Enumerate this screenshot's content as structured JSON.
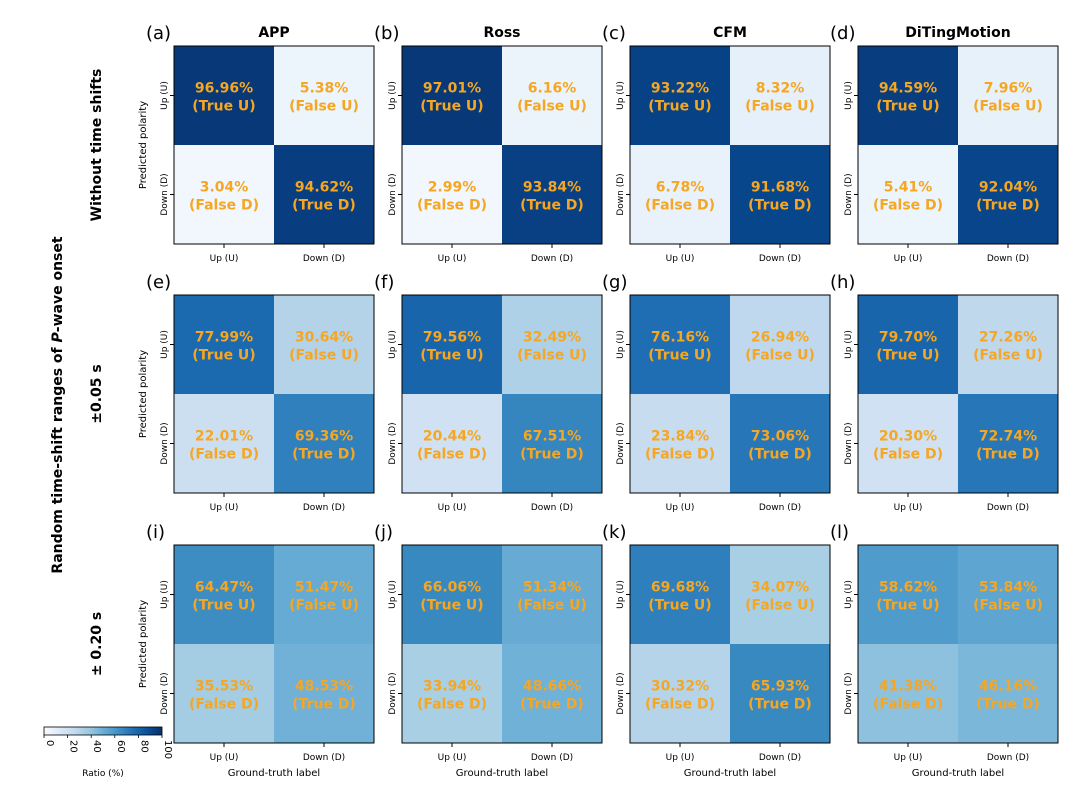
{
  "figure": {
    "y_super_label_prefix": "Random time-shift ranges of ",
    "y_super_label_italic": "P",
    "y_super_label_suffix": "-wave onset"
  },
  "row_labels": [
    "Without time shifts",
    "±0.05 s",
    "± 0.20 s"
  ],
  "column_titles": [
    "APP",
    "Ross",
    "CFM",
    "DiTingMotion"
  ],
  "panel_letters": [
    "(a)",
    "(b)",
    "(c)",
    "(d)",
    "(e)",
    "(f)",
    "(g)",
    "(h)",
    "(i)",
    "(j)",
    "(k)",
    "(l)"
  ],
  "axis_text": {
    "ylabel": "Predicted polarity",
    "xlabel": "Ground-truth label",
    "row_ticks": [
      "Up (U)",
      "Down (D)"
    ],
    "col_ticks": [
      "Up (U)",
      "Down (D)"
    ]
  },
  "cell_labels": [
    [
      "(True U)",
      "(False U)"
    ],
    [
      "(False D)",
      "(True D)"
    ]
  ],
  "colorbar": {
    "label": "Ratio (%)",
    "ticks": [
      "0",
      "20",
      "40",
      "60",
      "80",
      "100"
    ],
    "range": [
      0,
      100
    ]
  },
  "colors": {
    "cmap_low": "#f7fbff",
    "cmap_high": "#08306b",
    "annotation": "#f5a623",
    "text": "#000000"
  },
  "chart_data": [
    {
      "type": "heatmap",
      "panel": "(a)",
      "model": "APP",
      "condition": "Without time shifts",
      "values": [
        [
          96.96,
          5.38
        ],
        [
          3.04,
          94.62
        ]
      ],
      "value_labels": [
        [
          "96.96%",
          "5.38%"
        ],
        [
          "3.04%",
          "94.62%"
        ]
      ]
    },
    {
      "type": "heatmap",
      "panel": "(b)",
      "model": "Ross",
      "condition": "Without time shifts",
      "values": [
        [
          97.01,
          6.16
        ],
        [
          2.99,
          93.84
        ]
      ],
      "value_labels": [
        [
          "97.01%",
          "6.16%"
        ],
        [
          "2.99%",
          "93.84%"
        ]
      ]
    },
    {
      "type": "heatmap",
      "panel": "(c)",
      "model": "CFM",
      "condition": "Without time shifts",
      "values": [
        [
          93.22,
          8.32
        ],
        [
          6.78,
          91.68
        ]
      ],
      "value_labels": [
        [
          "93.22%",
          "8.32%"
        ],
        [
          "6.78%",
          "91.68%"
        ]
      ]
    },
    {
      "type": "heatmap",
      "panel": "(d)",
      "model": "DiTingMotion",
      "condition": "Without time shifts",
      "values": [
        [
          94.59,
          7.96
        ],
        [
          5.41,
          92.04
        ]
      ],
      "value_labels": [
        [
          "94.59%",
          "7.96%"
        ],
        [
          "5.41%",
          "92.04%"
        ]
      ]
    },
    {
      "type": "heatmap",
      "panel": "(e)",
      "model": "APP",
      "condition": "±0.05 s",
      "values": [
        [
          77.99,
          30.64
        ],
        [
          22.01,
          69.36
        ]
      ],
      "value_labels": [
        [
          "77.99%",
          "30.64%"
        ],
        [
          "22.01%",
          "69.36%"
        ]
      ]
    },
    {
      "type": "heatmap",
      "panel": "(f)",
      "model": "Ross",
      "condition": "±0.05 s",
      "values": [
        [
          79.56,
          32.49
        ],
        [
          20.44,
          67.51
        ]
      ],
      "value_labels": [
        [
          "79.56%",
          "32.49%"
        ],
        [
          "20.44%",
          "67.51%"
        ]
      ]
    },
    {
      "type": "heatmap",
      "panel": "(g)",
      "model": "CFM",
      "condition": "±0.05 s",
      "values": [
        [
          76.16,
          26.94
        ],
        [
          23.84,
          73.06
        ]
      ],
      "value_labels": [
        [
          "76.16%",
          "26.94%"
        ],
        [
          "23.84%",
          "73.06%"
        ]
      ]
    },
    {
      "type": "heatmap",
      "panel": "(h)",
      "model": "DiTingMotion",
      "condition": "±0.05 s",
      "values": [
        [
          79.7,
          27.26
        ],
        [
          20.3,
          72.74
        ]
      ],
      "value_labels": [
        [
          "79.70%",
          "27.26%"
        ],
        [
          "20.30%",
          "72.74%"
        ]
      ]
    },
    {
      "type": "heatmap",
      "panel": "(i)",
      "model": "APP",
      "condition": "± 0.20 s",
      "values": [
        [
          64.47,
          51.47
        ],
        [
          35.53,
          48.53
        ]
      ],
      "value_labels": [
        [
          "64.47%",
          "51.47%"
        ],
        [
          "35.53%",
          "48.53%"
        ]
      ]
    },
    {
      "type": "heatmap",
      "panel": "(j)",
      "model": "Ross",
      "condition": "± 0.20 s",
      "values": [
        [
          66.06,
          51.34
        ],
        [
          33.94,
          48.66
        ]
      ],
      "value_labels": [
        [
          "66.06%",
          "51.34%"
        ],
        [
          "33.94%",
          "48.66%"
        ]
      ]
    },
    {
      "type": "heatmap",
      "panel": "(k)",
      "model": "CFM",
      "condition": "± 0.20 s",
      "values": [
        [
          69.68,
          34.07
        ],
        [
          30.32,
          65.93
        ]
      ],
      "value_labels": [
        [
          "69.68%",
          "34.07%"
        ],
        [
          "30.32%",
          "65.93%"
        ]
      ]
    },
    {
      "type": "heatmap",
      "panel": "(l)",
      "model": "DiTingMotion",
      "condition": "± 0.20 s",
      "values": [
        [
          58.62,
          53.84
        ],
        [
          41.38,
          46.16
        ]
      ],
      "value_labels": [
        [
          "58.62%",
          "53.84%"
        ],
        [
          "41.38%",
          "46.16%"
        ]
      ]
    }
  ]
}
